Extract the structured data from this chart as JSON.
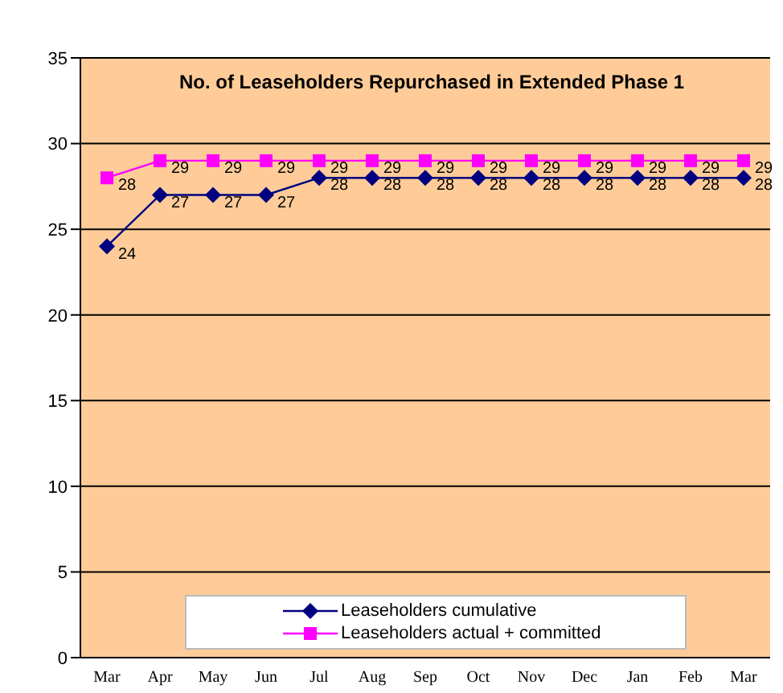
{
  "chart_data": {
    "type": "line",
    "title": "No. of Leaseholders Repurchased in Extended Phase 1",
    "categories": [
      "Mar",
      "Apr",
      "May",
      "Jun",
      "Jul",
      "Aug",
      "Sep",
      "Oct",
      "Nov",
      "Dec",
      "Jan",
      "Feb",
      "Mar"
    ],
    "series": [
      {
        "name": "Leaseholders cumulative",
        "color": "#000080",
        "marker": "diamond",
        "values": [
          24,
          27,
          27,
          27,
          28,
          28,
          28,
          28,
          28,
          28,
          28,
          28,
          28
        ]
      },
      {
        "name": "Leaseholders actual + committed",
        "color": "#ff00ff",
        "marker": "square",
        "values": [
          28,
          29,
          29,
          29,
          29,
          29,
          29,
          29,
          29,
          29,
          29,
          29,
          29
        ]
      }
    ],
    "ylim": [
      0,
      35
    ],
    "yticks": [
      0,
      5,
      10,
      15,
      20,
      25,
      30,
      35
    ],
    "grid": "y",
    "legend": "bottom",
    "data_labels": true,
    "line_style": "solid"
  }
}
